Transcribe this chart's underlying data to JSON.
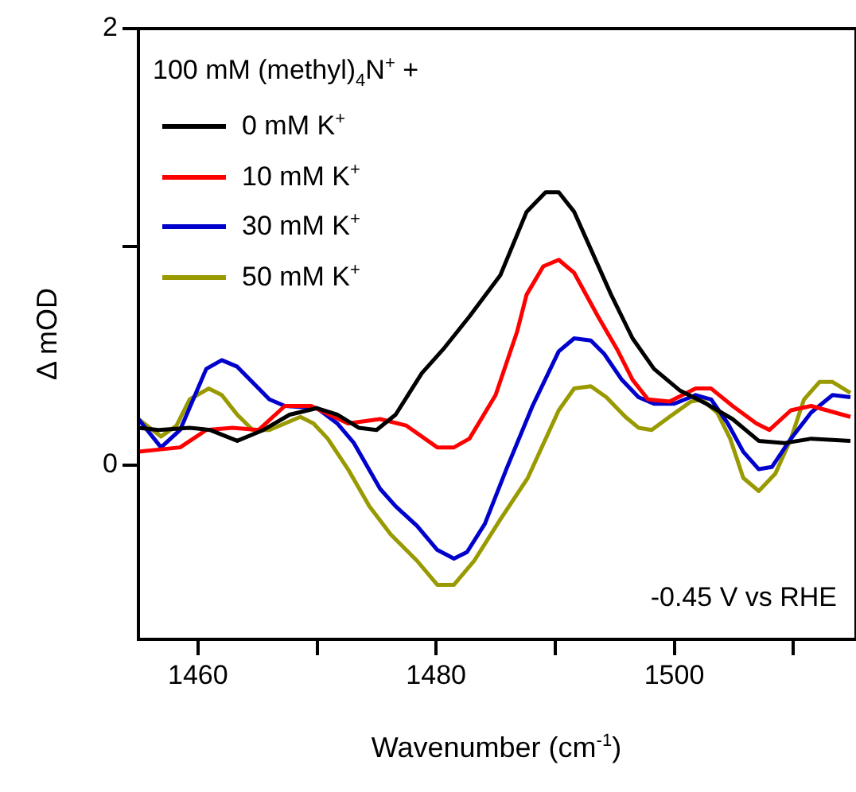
{
  "chart_data": {
    "type": "line",
    "xlabel": "Wavenumber (cm$^{-1}$)",
    "ylabel": "Δ mOD",
    "legend_title": "100 mM (methyl)$_{4}$N$^{+}$ +",
    "annotations": [
      "-0.45 V vs RHE"
    ],
    "xlim": [
      1455,
      1515
    ],
    "xticks": [
      1460,
      {
        "value": 1470,
        "label": null
      },
      1480,
      {
        "value": 1490,
        "label": null
      },
      1500,
      {
        "value": 1510,
        "label": null
      }
    ],
    "ylim": [
      -0.8,
      2
    ],
    "yticks": [
      0,
      {
        "value": 1,
        "label": null
      },
      2
    ],
    "grid": false,
    "legend": "top left",
    "marker": "none",
    "line_style": "solid",
    "series": [
      {
        "name": "0 mM K$^{+}$",
        "color": "#000000",
        "x": [
          1455,
          1456.7,
          1459.3,
          1461,
          1463.3,
          1465.5,
          1467.7,
          1470,
          1471.7,
          1473.5,
          1475,
          1476.6,
          1478.8,
          1480.6,
          1482.8,
          1485.4,
          1487.6,
          1489.2,
          1490.3,
          1491.6,
          1494.7,
          1496.5,
          1498.3,
          1500.5,
          1502.7,
          1504.9,
          1507.1,
          1509.3,
          1511.5,
          1514.8
        ],
        "values": [
          0.17,
          0.16,
          0.17,
          0.16,
          0.11,
          0.16,
          0.23,
          0.26,
          0.23,
          0.17,
          0.16,
          0.23,
          0.42,
          0.53,
          0.68,
          0.87,
          1.16,
          1.25,
          1.25,
          1.16,
          0.78,
          0.58,
          0.44,
          0.34,
          0.28,
          0.21,
          0.11,
          0.1,
          0.12,
          0.11
        ]
      },
      {
        "name": "10 mM K$^{+}$",
        "color": "#ff0000",
        "x": [
          1455,
          1456.7,
          1458.5,
          1460.7,
          1462.9,
          1465.1,
          1467.3,
          1469.5,
          1472.6,
          1475.3,
          1477.5,
          1480.1,
          1481.5,
          1482.8,
          1485,
          1486.8,
          1487.6,
          1489,
          1490.3,
          1491.6,
          1493.6,
          1495.2,
          1496.5,
          1497.8,
          1499.6,
          1501.8,
          1503.1,
          1504.9,
          1506.9,
          1508,
          1509.8,
          1511.5,
          1514.8
        ],
        "values": [
          0.06,
          0.07,
          0.08,
          0.16,
          0.17,
          0.16,
          0.27,
          0.27,
          0.19,
          0.21,
          0.18,
          0.08,
          0.08,
          0.12,
          0.32,
          0.61,
          0.78,
          0.91,
          0.94,
          0.88,
          0.68,
          0.53,
          0.39,
          0.3,
          0.29,
          0.35,
          0.35,
          0.27,
          0.19,
          0.16,
          0.25,
          0.27,
          0.22
        ]
      },
      {
        "name": "30 mM K$^{+}$",
        "color": "#0000cc",
        "x": [
          1455,
          1456.9,
          1458.5,
          1460.7,
          1462,
          1463.3,
          1466,
          1467.3,
          1470,
          1471.7,
          1473.1,
          1475.3,
          1476.6,
          1478.4,
          1480.1,
          1481.5,
          1482.6,
          1484.1,
          1485.9,
          1488.1,
          1490.3,
          1491.6,
          1493,
          1494.1,
          1495.6,
          1497,
          1498.3,
          1500,
          1501.8,
          1503.1,
          1504.5,
          1505.8,
          1507.1,
          1508.2,
          1509.8,
          1511.5,
          1513.3,
          1514.8
        ],
        "values": [
          0.21,
          0.08,
          0.16,
          0.44,
          0.48,
          0.45,
          0.3,
          0.27,
          0.26,
          0.19,
          0.1,
          -0.11,
          -0.19,
          -0.28,
          -0.39,
          -0.43,
          -0.4,
          -0.27,
          -0.02,
          0.27,
          0.52,
          0.58,
          0.57,
          0.51,
          0.39,
          0.31,
          0.28,
          0.28,
          0.32,
          0.3,
          0.19,
          0.06,
          -0.02,
          -0.01,
          0.12,
          0.24,
          0.32,
          0.31
        ]
      },
      {
        "name": "50 mM K$^{+}$",
        "color": "#999900",
        "x": [
          1455,
          1456.9,
          1458.2,
          1459.3,
          1460.9,
          1462,
          1463.3,
          1464.6,
          1466,
          1467.3,
          1468.6,
          1469.7,
          1470.9,
          1472.6,
          1474.4,
          1476.2,
          1478.4,
          1480.1,
          1481.5,
          1483.2,
          1485.4,
          1487.7,
          1490.3,
          1491.6,
          1493,
          1494.3,
          1495.9,
          1497,
          1498.1,
          1499.6,
          1501.4,
          1502.3,
          1503.6,
          1504.7,
          1505.8,
          1507.1,
          1508.5,
          1509.8,
          1510.9,
          1512.2,
          1513.3,
          1514.8
        ],
        "values": [
          0.21,
          0.13,
          0.18,
          0.3,
          0.35,
          0.32,
          0.23,
          0.16,
          0.16,
          0.19,
          0.22,
          0.19,
          0.12,
          -0.02,
          -0.19,
          -0.32,
          -0.44,
          -0.55,
          -0.55,
          -0.44,
          -0.25,
          -0.06,
          0.25,
          0.35,
          0.36,
          0.31,
          0.22,
          0.17,
          0.16,
          0.22,
          0.29,
          0.3,
          0.24,
          0.12,
          -0.06,
          -0.12,
          -0.04,
          0.12,
          0.3,
          0.38,
          0.38,
          0.33
        ]
      }
    ]
  }
}
